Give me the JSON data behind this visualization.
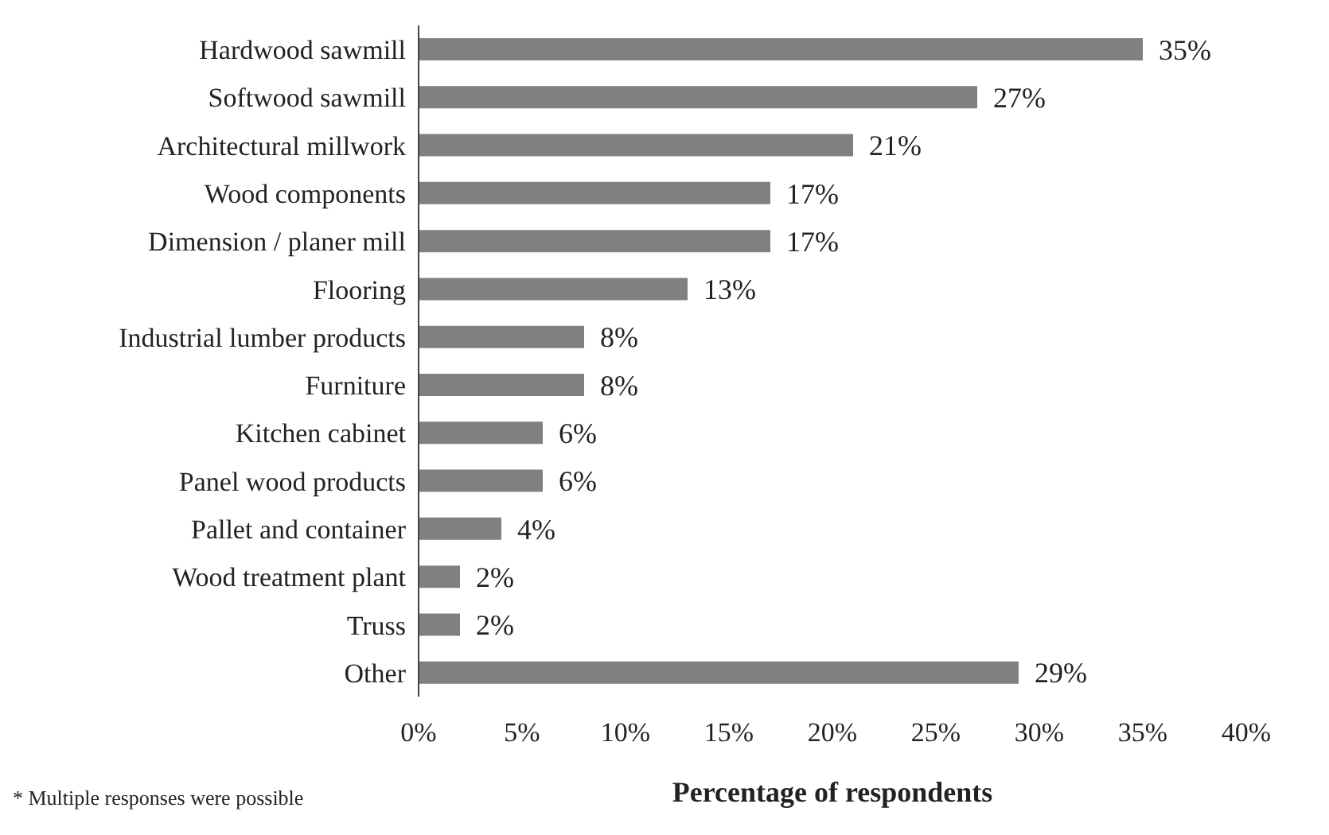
{
  "chart_data": {
    "type": "bar",
    "orientation": "horizontal",
    "xlabel": "Percentage of respondents",
    "categories": [
      "Hardwood sawmill",
      "Softwood sawmill",
      "Architectural millwork",
      "Wood components",
      "Dimension / planer mill",
      "Flooring",
      "Industrial lumber products",
      "Furniture",
      "Kitchen cabinet",
      "Panel wood products",
      "Pallet and container",
      "Wood treatment plant",
      "Truss",
      "Other"
    ],
    "values": [
      35,
      27,
      21,
      17,
      17,
      13,
      8,
      8,
      6,
      6,
      4,
      2,
      2,
      29
    ],
    "value_labels": [
      "35%",
      "27%",
      "21%",
      "17%",
      "17%",
      "13%",
      "8%",
      "8%",
      "6%",
      "6%",
      "4%",
      "2%",
      "2%",
      "29%"
    ],
    "color": "#808080",
    "xlim": [
      0,
      40
    ],
    "xticks": [
      {
        "value": 0,
        "label": "0%"
      },
      {
        "value": 5,
        "label": "5%"
      },
      {
        "value": 10,
        "label": "10%"
      },
      {
        "value": 15,
        "label": "15%"
      },
      {
        "value": 20,
        "label": "20%"
      },
      {
        "value": 25,
        "label": "25%"
      },
      {
        "value": 30,
        "label": "30%"
      },
      {
        "value": 35,
        "label": "35%"
      },
      {
        "value": 40,
        "label": "40%"
      }
    ],
    "annotations": [
      "* Multiple responses were possible"
    ]
  }
}
